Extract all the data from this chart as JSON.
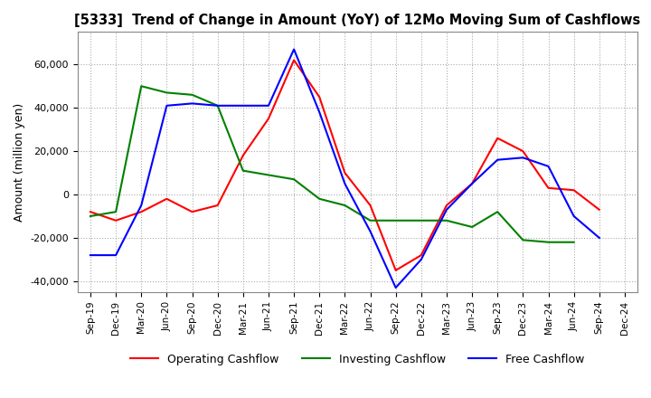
{
  "title": "[5333]  Trend of Change in Amount (YoY) of 12Mo Moving Sum of Cashflows",
  "ylabel": "Amount (million yen)",
  "x_labels": [
    "Sep-19",
    "Dec-19",
    "Mar-20",
    "Jun-20",
    "Sep-20",
    "Dec-20",
    "Mar-21",
    "Jun-21",
    "Sep-21",
    "Dec-21",
    "Mar-22",
    "Jun-22",
    "Sep-22",
    "Dec-22",
    "Mar-23",
    "Jun-23",
    "Sep-23",
    "Dec-23",
    "Mar-24",
    "Jun-24",
    "Sep-24",
    "Dec-24"
  ],
  "operating": [
    -8000,
    -12000,
    -8000,
    -2000,
    -8000,
    -5000,
    18000,
    35000,
    62000,
    45000,
    10000,
    -5000,
    -35000,
    -28000,
    -5000,
    5000,
    26000,
    20000,
    3000,
    2000,
    -7000,
    null
  ],
  "investing": [
    -10000,
    -8000,
    50000,
    47000,
    46000,
    41000,
    11000,
    9000,
    7000,
    -2000,
    -5000,
    -12000,
    -12000,
    -12000,
    -12000,
    -15000,
    -8000,
    -21000,
    -22000,
    -22000,
    null,
    null
  ],
  "free": [
    -28000,
    -28000,
    -5000,
    41000,
    42000,
    41000,
    41000,
    41000,
    67000,
    38000,
    5000,
    -17000,
    -43000,
    -30000,
    -7000,
    5000,
    16000,
    17000,
    13000,
    -10000,
    -20000,
    null
  ],
  "operating_color": "#ff0000",
  "investing_color": "#008000",
  "free_color": "#0000ff",
  "ylim": [
    -45000,
    75000
  ],
  "yticks": [
    -40000,
    -20000,
    0,
    20000,
    40000,
    60000
  ],
  "background_color": "#ffffff",
  "grid_color": "#aaaaaa"
}
